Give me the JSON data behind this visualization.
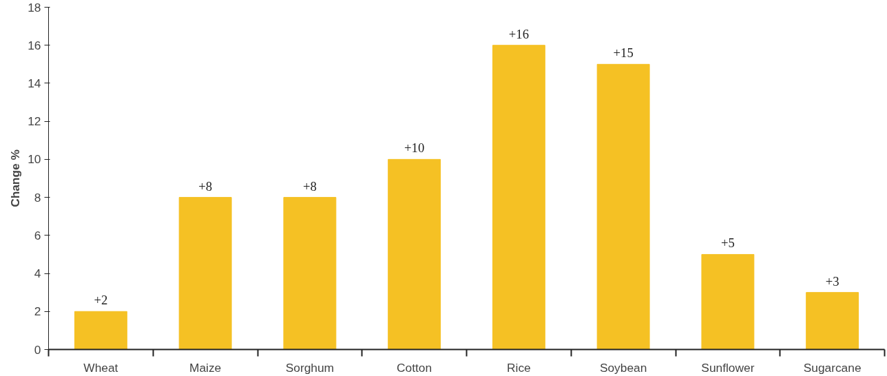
{
  "chart_data": {
    "type": "bar",
    "ylabel": "Change %",
    "categories": [
      "Wheat",
      "Maize",
      "Sorghum",
      "Cotton",
      "Rice",
      "Soybean",
      "Sunflower",
      "Sugarcane"
    ],
    "values": [
      2,
      8,
      8,
      10,
      16,
      15,
      5,
      3
    ],
    "value_labels": [
      "+2",
      "+8",
      "+8",
      "+10",
      "+16",
      "+15",
      "+5",
      "+3"
    ],
    "color": "#f5c124",
    "ylim": [
      0,
      18
    ],
    "yticks": [
      0,
      2,
      4,
      6,
      8,
      10,
      12,
      14,
      16,
      18
    ],
    "grid": false
  }
}
